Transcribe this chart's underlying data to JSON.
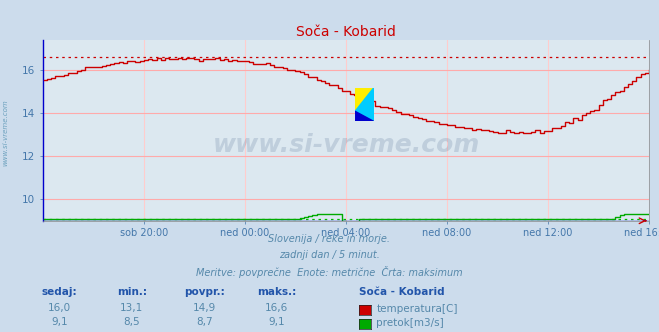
{
  "title": "Soča - Kobarid",
  "bg_color": "#ccdcec",
  "plot_bg_color": "#dce8f0",
  "grid_color_h": "#ffaaaa",
  "grid_color_v": "#ffcccc",
  "xlabel_ticks": [
    "sob 20:00",
    "ned 00:00",
    "ned 04:00",
    "ned 08:00",
    "ned 12:00",
    "ned 16:00"
  ],
  "ylim": [
    9.0,
    17.4
  ],
  "xlim": [
    0,
    288
  ],
  "yticks": [
    10,
    12,
    14,
    16
  ],
  "title_color": "#cc0000",
  "tick_color": "#4477aa",
  "subtitle_lines": [
    "Slovenija / reke in morje.",
    "zadnji dan / 5 minut.",
    "Meritve: povprečne  Enote: metrične  Črta: maksimum"
  ],
  "subtitle_color": "#5588aa",
  "table_headers": [
    "sedaj:",
    "min.:",
    "povpr.:",
    "maks.:",
    "Soča - Kobarid"
  ],
  "table_row1": [
    "16,0",
    "13,1",
    "14,9",
    "16,6"
  ],
  "table_row2": [
    "9,1",
    "8,5",
    "8,7",
    "9,1"
  ],
  "legend_labels": [
    "temperatura[C]",
    "pretok[m3/s]"
  ],
  "legend_colors": [
    "#cc0000",
    "#00aa00"
  ],
  "temp_max_line": 16.6,
  "flow_max_line": 9.1,
  "watermark_text": "www.si-vreme.com",
  "watermark_color": "#1a3a6a",
  "watermark_alpha": 0.15,
  "sidebar_text": "www.si-vreme.com",
  "sidebar_color": "#4488aa",
  "sidebar_alpha": 0.7
}
